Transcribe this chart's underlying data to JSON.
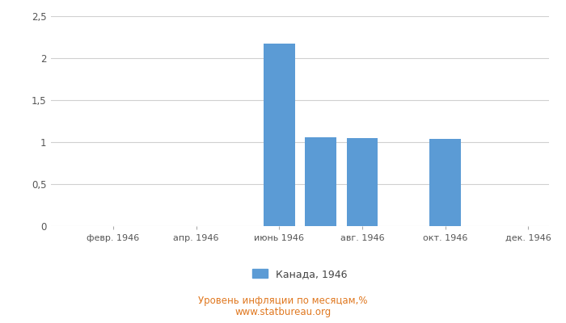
{
  "month_indices": [
    1,
    2,
    3,
    4,
    5,
    6,
    7,
    8,
    9,
    10,
    11,
    12
  ],
  "values": [
    0,
    0,
    0,
    0,
    0,
    2.17,
    1.06,
    1.05,
    0,
    1.04,
    0,
    0
  ],
  "bar_color": "#5b9bd5",
  "xtick_labels": [
    "февр. 1946",
    "апр. 1946",
    "июнь 1946",
    "авг. 1946",
    "окт. 1946",
    "дек. 1946"
  ],
  "xtick_positions": [
    2,
    4,
    6,
    8,
    10,
    12
  ],
  "ylim": [
    0,
    2.5
  ],
  "yticks": [
    0,
    0.5,
    1.0,
    1.5,
    2.0,
    2.5
  ],
  "ytick_labels": [
    "0",
    "0,5",
    "1",
    "1,5",
    "2",
    "2,5"
  ],
  "legend_label": "Канада, 1946",
  "footnote_line1": "Уровень инфляции по месяцам,%",
  "footnote_line2": "www.statbureau.org",
  "background_color": "#ffffff",
  "grid_color": "#d0d0d0",
  "bar_width": 0.75,
  "footnote_color": "#e07820"
}
